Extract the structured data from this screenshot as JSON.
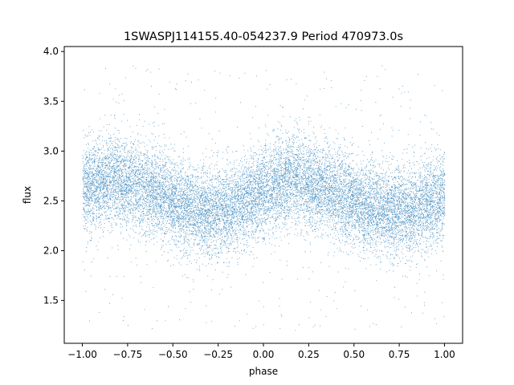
{
  "chart_data": {
    "type": "scatter",
    "title": "1SWASPJ114155.40-054237.9 Period 470973.0s",
    "xlabel": "phase",
    "ylabel": "flux",
    "xlim": [
      -1.1,
      1.1
    ],
    "ylim": [
      1.07,
      4.05
    ],
    "xticks": [
      -1.0,
      -0.75,
      -0.5,
      -0.25,
      0.0,
      0.25,
      0.5,
      0.75,
      1.0
    ],
    "xtick_labels": [
      "−1.00",
      "−0.75",
      "−0.50",
      "−0.25",
      "0.00",
      "0.25",
      "0.50",
      "0.75",
      "1.00"
    ],
    "yticks": [
      1.5,
      2.0,
      2.5,
      3.0,
      3.5,
      4.0
    ],
    "ytick_labels": [
      "1.5",
      "2.0",
      "2.5",
      "3.0",
      "3.5",
      "4.0"
    ],
    "grid": false,
    "marker_color": "#1f77b4",
    "series": [
      {
        "x_range": [
          -1.0,
          1.0
        ],
        "trend": [
          {
            "x": -1.0,
            "y": 2.62
          },
          {
            "x": -0.85,
            "y": 2.72
          },
          {
            "x": -0.75,
            "y": 2.68
          },
          {
            "x": -0.6,
            "y": 2.6
          },
          {
            "x": -0.45,
            "y": 2.45
          },
          {
            "x": -0.3,
            "y": 2.38
          },
          {
            "x": -0.15,
            "y": 2.45
          },
          {
            "x": 0.0,
            "y": 2.6
          },
          {
            "x": 0.15,
            "y": 2.72
          },
          {
            "x": 0.25,
            "y": 2.68
          },
          {
            "x": 0.4,
            "y": 2.58
          },
          {
            "x": 0.55,
            "y": 2.45
          },
          {
            "x": 0.7,
            "y": 2.38
          },
          {
            "x": 0.85,
            "y": 2.45
          },
          {
            "x": 1.0,
            "y": 2.55
          }
        ],
        "scatter_sd": 0.22,
        "outlier_min": 1.2,
        "outlier_max": 3.88,
        "n_points": 16000
      }
    ]
  }
}
